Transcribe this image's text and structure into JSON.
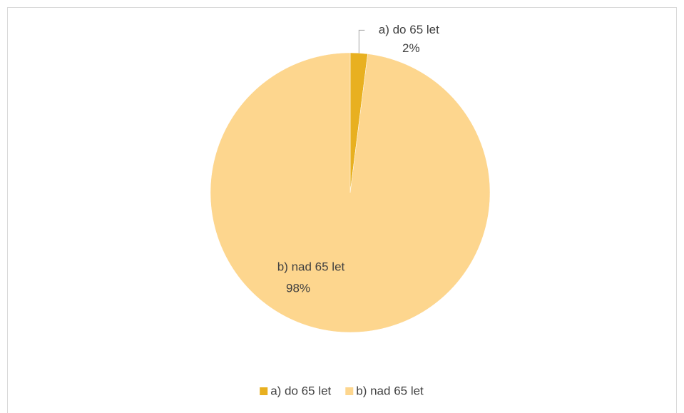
{
  "chart_data": {
    "type": "pie",
    "categories": [
      "a) do 65 let",
      "b) nad 65 let"
    ],
    "values": [
      2,
      98
    ],
    "value_labels": [
      "2%",
      "98%"
    ],
    "colors": [
      "#e8b020",
      "#fdd68e"
    ],
    "legend": "bottom"
  }
}
